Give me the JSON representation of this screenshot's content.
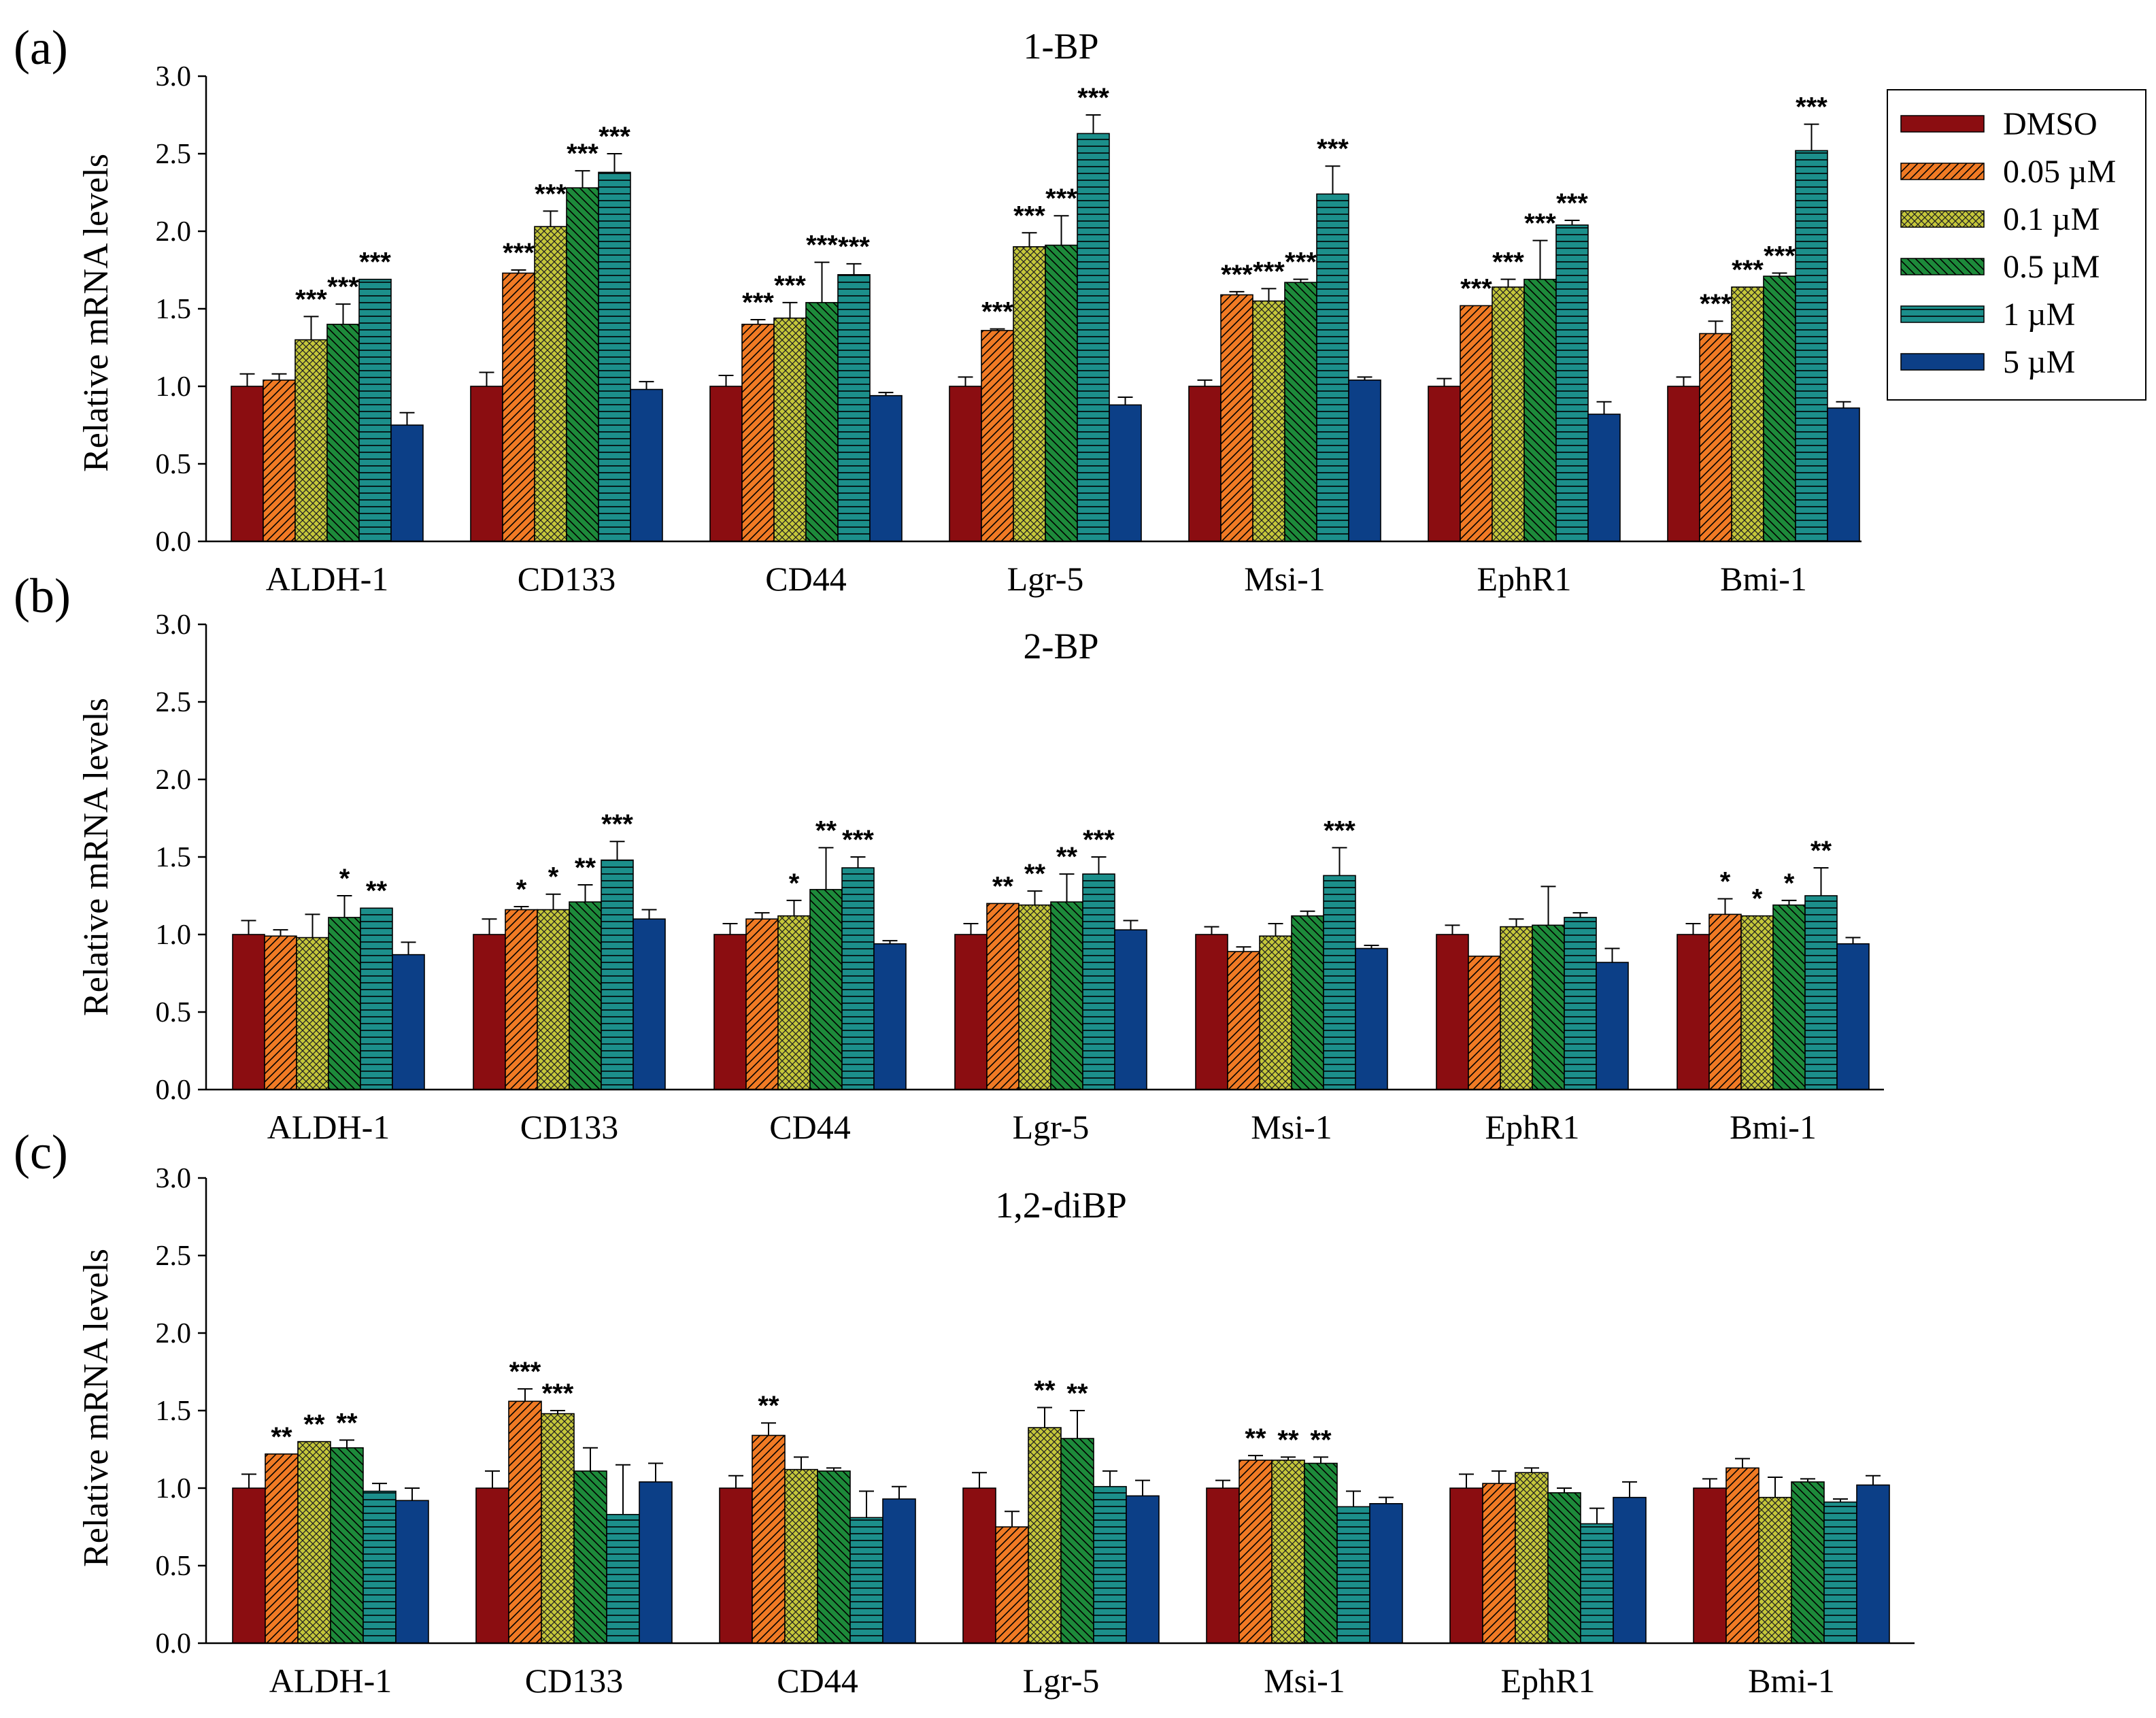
{
  "colors": {
    "DMSO": "#8b0d11",
    "0.05": "#f07a24",
    "0.1": "#c5c73a",
    "0.5": "#1d8a3a",
    "1": "#1c8f8b",
    "5": "#0c3f87"
  },
  "legend": {
    "entries": [
      "DMSO",
      "0.05 µM",
      "0.1 µM",
      "0.5 µM",
      "1 µM",
      "5 µM"
    ]
  },
  "chart_data": [
    {
      "type": "bar",
      "panel_label": "(a)",
      "title": "1-BP",
      "ylabel": "Relative mRNA levels",
      "xlabel": "",
      "ylim": [
        0,
        3.0
      ],
      "yticks": [
        "0.0",
        "0.5",
        "1.0",
        "1.5",
        "2.0",
        "2.5",
        "3.0"
      ],
      "categories": [
        "ALDH-1",
        "CD133",
        "CD44",
        "Lgr-5",
        "Msi-1",
        "EphR1",
        "Bmi-1"
      ],
      "series": [
        {
          "name": "DMSO",
          "values": [
            1.0,
            1.0,
            1.0,
            1.0,
            1.0,
            1.0,
            1.0
          ],
          "errors": [
            0.08,
            0.09,
            0.07,
            0.06,
            0.04,
            0.05,
            0.06
          ],
          "sig": [
            "",
            "",
            "",
            "",
            "",
            "",
            ""
          ]
        },
        {
          "name": "0.05 µM",
          "values": [
            1.04,
            1.73,
            1.4,
            1.36,
            1.59,
            1.52,
            1.34
          ],
          "errors": [
            0.04,
            0.02,
            0.03,
            0.01,
            0.02,
            0.0,
            0.08
          ],
          "sig": [
            "",
            "***",
            "***",
            "***",
            "***",
            "***",
            "***"
          ]
        },
        {
          "name": "0.1 µM",
          "values": [
            1.3,
            2.03,
            1.44,
            1.9,
            1.55,
            1.64,
            1.64
          ],
          "errors": [
            0.15,
            0.1,
            0.1,
            0.09,
            0.08,
            0.05,
            0.0
          ],
          "sig": [
            "***",
            "***",
            "***",
            "***",
            "***",
            "***",
            "***"
          ]
        },
        {
          "name": "0.5 µM",
          "values": [
            1.4,
            2.28,
            1.54,
            1.91,
            1.67,
            1.69,
            1.71
          ],
          "errors": [
            0.13,
            0.11,
            0.26,
            0.19,
            0.02,
            0.25,
            0.02
          ],
          "sig": [
            "***",
            "***",
            "***",
            "***",
            "***",
            "***",
            "***"
          ]
        },
        {
          "name": "1 µM",
          "values": [
            1.69,
            2.38,
            1.72,
            2.63,
            2.24,
            2.04,
            2.52
          ],
          "errors": [
            0.0,
            0.12,
            0.07,
            0.12,
            0.18,
            0.03,
            0.17
          ],
          "sig": [
            "***",
            "***",
            "***",
            "***",
            "***",
            "***",
            "***"
          ]
        },
        {
          "name": "5 µM",
          "values": [
            0.75,
            0.98,
            0.94,
            0.88,
            1.04,
            0.82,
            0.86
          ],
          "errors": [
            0.08,
            0.05,
            0.02,
            0.05,
            0.02,
            0.08,
            0.04
          ],
          "sig": [
            "",
            "",
            "",
            "",
            "",
            "",
            ""
          ]
        }
      ]
    },
    {
      "type": "bar",
      "panel_label": "(b)",
      "title": "2-BP",
      "ylabel": "Relative mRNA levels",
      "xlabel": "",
      "ylim": [
        0,
        3.0
      ],
      "yticks": [
        "0.0",
        "0.5",
        "1.0",
        "1.5",
        "2.0",
        "2.5",
        "3.0"
      ],
      "categories": [
        "ALDH-1",
        "CD133",
        "CD44",
        "Lgr-5",
        "Msi-1",
        "EphR1",
        "Bmi-1"
      ],
      "series": [
        {
          "name": "DMSO",
          "values": [
            1.0,
            1.0,
            1.0,
            1.0,
            1.0,
            1.0,
            1.0
          ],
          "errors": [
            0.09,
            0.1,
            0.07,
            0.07,
            0.05,
            0.06,
            0.07
          ],
          "sig": [
            "",
            "",
            "",
            "",
            "",
            "",
            ""
          ]
        },
        {
          "name": "0.05 µM",
          "values": [
            0.99,
            1.16,
            1.1,
            1.2,
            0.89,
            0.86,
            1.13
          ],
          "errors": [
            0.04,
            0.02,
            0.04,
            0.0,
            0.03,
            0.0,
            0.1
          ],
          "sig": [
            "",
            "*",
            "",
            "**",
            "",
            "",
            "*"
          ]
        },
        {
          "name": "0.1 µM",
          "values": [
            0.98,
            1.16,
            1.12,
            1.19,
            0.99,
            1.05,
            1.12
          ],
          "errors": [
            0.15,
            0.1,
            0.1,
            0.09,
            0.08,
            0.05,
            0.0
          ],
          "sig": [
            "",
            "*",
            "*",
            "**",
            "",
            "",
            "*"
          ]
        },
        {
          "name": "0.5 µM",
          "values": [
            1.11,
            1.21,
            1.29,
            1.21,
            1.12,
            1.06,
            1.19
          ],
          "errors": [
            0.14,
            0.11,
            0.27,
            0.18,
            0.03,
            0.25,
            0.03
          ],
          "sig": [
            "*",
            "**",
            "**",
            "**",
            "",
            "",
            "*"
          ]
        },
        {
          "name": "1 µM",
          "values": [
            1.17,
            1.48,
            1.43,
            1.39,
            1.38,
            1.11,
            1.25
          ],
          "errors": [
            0.0,
            0.12,
            0.07,
            0.11,
            0.18,
            0.03,
            0.18
          ],
          "sig": [
            "**",
            "***",
            "***",
            "***",
            "***",
            "",
            "**"
          ]
        },
        {
          "name": "5 µM",
          "values": [
            0.87,
            1.1,
            0.94,
            1.03,
            0.91,
            0.82,
            0.94
          ],
          "errors": [
            0.08,
            0.06,
            0.02,
            0.06,
            0.02,
            0.09,
            0.04
          ],
          "sig": [
            "",
            "",
            "",
            "",
            "",
            "",
            ""
          ]
        }
      ]
    },
    {
      "type": "bar",
      "panel_label": "(c)",
      "title": "1,2-diBP",
      "ylabel": "Relative mRNA levels",
      "xlabel": "",
      "ylim": [
        0,
        3.0
      ],
      "yticks": [
        "0.0",
        "0.5",
        "1.0",
        "1.5",
        "2.0",
        "2.5",
        "3.0"
      ],
      "categories": [
        "ALDH-1",
        "CD133",
        "CD44",
        "Lgr-5",
        "Msi-1",
        "EphR1",
        "Bmi-1"
      ],
      "series": [
        {
          "name": "DMSO",
          "values": [
            1.0,
            1.0,
            1.0,
            1.0,
            1.0,
            1.0,
            1.0
          ],
          "errors": [
            0.09,
            0.11,
            0.08,
            0.1,
            0.05,
            0.09,
            0.06
          ],
          "sig": [
            "",
            "",
            "",
            "",
            "",
            "",
            ""
          ]
        },
        {
          "name": "0.05 µM",
          "values": [
            1.22,
            1.56,
            1.34,
            0.75,
            1.18,
            1.03,
            1.13
          ],
          "errors": [
            0.0,
            0.08,
            0.08,
            0.1,
            0.03,
            0.08,
            0.06
          ],
          "sig": [
            "**",
            "***",
            "**",
            "",
            "**",
            "",
            ""
          ]
        },
        {
          "name": "0.1 µM",
          "values": [
            1.3,
            1.48,
            1.12,
            1.39,
            1.18,
            1.1,
            0.94
          ],
          "errors": [
            0.0,
            0.02,
            0.08,
            0.13,
            0.02,
            0.03,
            0.13
          ],
          "sig": [
            "**",
            "***",
            "",
            "**",
            "**",
            "",
            ""
          ]
        },
        {
          "name": "0.5 µM",
          "values": [
            1.26,
            1.11,
            1.11,
            1.32,
            1.16,
            0.97,
            1.04
          ],
          "errors": [
            0.05,
            0.15,
            0.02,
            0.18,
            0.04,
            0.03,
            0.02
          ],
          "sig": [
            "**",
            "",
            "",
            "**",
            "**",
            "",
            ""
          ]
        },
        {
          "name": "1 µM",
          "values": [
            0.98,
            0.83,
            0.81,
            1.01,
            0.88,
            0.77,
            0.91
          ],
          "errors": [
            0.05,
            0.32,
            0.17,
            0.1,
            0.1,
            0.1,
            0.02
          ],
          "sig": [
            "",
            "",
            "",
            "",
            "",
            "",
            ""
          ]
        },
        {
          "name": "5 µM",
          "values": [
            0.92,
            1.04,
            0.93,
            0.95,
            0.9,
            0.94,
            1.02
          ],
          "errors": [
            0.08,
            0.12,
            0.08,
            0.1,
            0.04,
            0.1,
            0.06
          ],
          "sig": [
            "",
            "",
            "",
            "",
            "",
            "",
            ""
          ]
        }
      ]
    }
  ]
}
